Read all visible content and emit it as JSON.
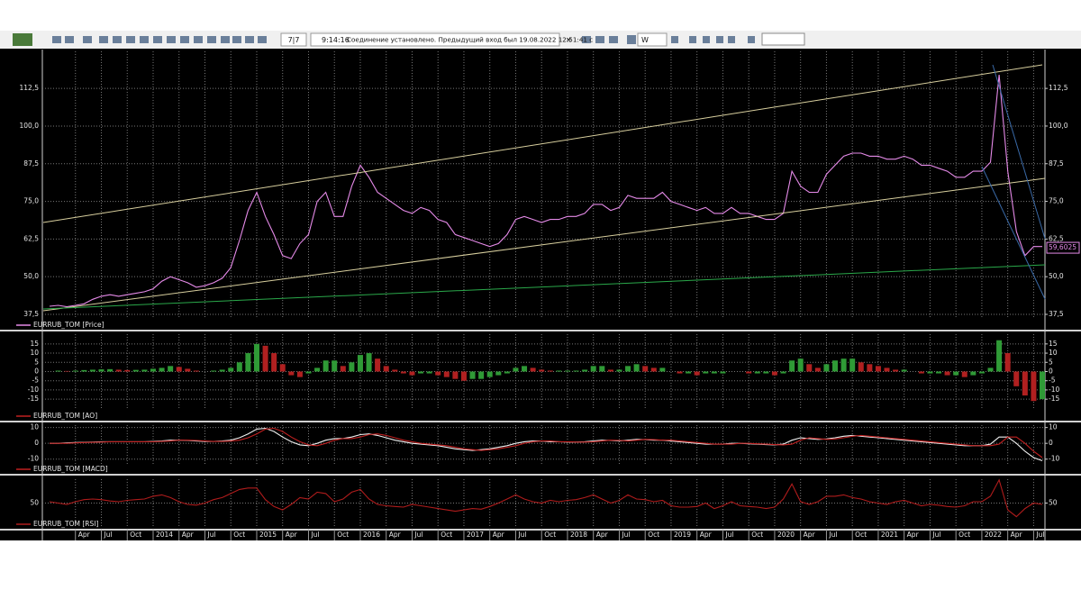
{
  "toolbar": {
    "counter": "7|7",
    "time": "9:14:16",
    "status": "Соединение установлено. Предыдущий вход был 19.08.2022 12:51:41 с",
    "period": "W"
  },
  "chart_data": [
    {
      "type": "line",
      "categories": [
        null,
        null,
        null,
        "Apr",
        null,
        null,
        "Jul",
        null,
        null,
        "Oct",
        null,
        null,
        "2014",
        null,
        null,
        "Apr",
        null,
        null,
        "Jul",
        null,
        null,
        "Oct",
        null,
        null,
        "2015",
        null,
        null,
        "Apr",
        null,
        null,
        "Jul",
        null,
        null,
        "Oct",
        null,
        null,
        "2016",
        null,
        null,
        "Apr",
        null,
        null,
        "Jul",
        null,
        null,
        "Oct",
        null,
        null,
        "2017",
        null,
        null,
        "Apr",
        null,
        null,
        "Jul",
        null,
        null,
        "Oct",
        null,
        null,
        "2018",
        null,
        null,
        "Apr",
        null,
        null,
        "Jul",
        null,
        null,
        "Oct",
        null,
        null,
        "2019",
        null,
        null,
        "Apr",
        null,
        null,
        "Jul",
        null,
        null,
        "Oct",
        null,
        null,
        "2020",
        null,
        null,
        "Apr",
        null,
        null,
        "Jul",
        null,
        null,
        "Oct",
        null,
        null,
        "2021",
        null,
        null,
        "Apr",
        null,
        null,
        "Jul",
        null,
        null,
        "Oct",
        null,
        null,
        "2022",
        null,
        null,
        "Apr",
        null,
        null,
        "Jul",
        null
      ],
      "series": [
        {
          "name": "EURRUB_TOM [Price]",
          "color": "#e58ae8",
          "values": [
            40.2,
            40.5,
            40,
            40.5,
            41,
            42.5,
            43.5,
            44,
            43.5,
            44,
            44.5,
            45,
            46,
            48.5,
            50,
            49,
            48,
            46.5,
            47,
            48,
            49.5,
            53,
            62,
            72,
            78,
            70,
            64,
            57,
            56,
            61,
            64,
            75,
            78,
            70,
            70,
            80,
            87,
            83,
            78,
            76,
            74,
            72,
            71,
            73,
            72,
            69,
            68,
            64,
            63,
            62,
            61,
            60,
            61,
            64,
            69,
            70,
            69,
            68,
            69,
            69,
            70,
            70,
            71,
            74,
            74,
            72,
            73,
            77,
            76,
            76,
            76,
            78,
            75,
            74,
            73,
            72,
            73,
            71,
            71,
            73,
            71,
            71,
            70,
            69,
            69,
            71,
            85,
            80,
            78,
            78,
            84,
            87,
            90,
            91,
            91,
            90,
            90,
            89,
            89,
            90,
            89,
            87,
            87,
            86,
            85,
            83,
            83,
            85,
            85,
            88,
            117,
            85,
            65,
            57,
            60,
            60
          ]
        }
      ],
      "last_value": {
        "value": 59.6025,
        "label": "59,6025"
      },
      "ylim": [
        36.6,
        124.8
      ],
      "yticks": [
        {
          "value": 37.5,
          "label": "37,5"
        },
        {
          "value": 50,
          "label": "50,0"
        },
        {
          "value": 62.5,
          "label": "62,5"
        },
        {
          "value": 75,
          "label": "75,0"
        },
        {
          "value": 87.5,
          "label": "87,5"
        },
        {
          "value": 100,
          "label": "100,0"
        },
        {
          "value": 112.5,
          "label": "112,5"
        }
      ],
      "grid": true
    },
    {
      "type": "bar",
      "series": [
        {
          "name": "EURRUB_TOM [AO]",
          "color": "#c02020",
          "up_color": "#2f9a36",
          "down_color": "#b02020",
          "values": [
            0,
            0.5,
            0.3,
            0.5,
            0.8,
            1,
            1.2,
            1.3,
            1,
            0.8,
            0.9,
            1,
            1.5,
            2,
            3,
            2.5,
            1.5,
            0.5,
            0,
            0.5,
            1,
            2,
            5,
            10,
            15,
            14,
            10,
            4,
            -2,
            -3,
            -1,
            2,
            6,
            6,
            3,
            5,
            9,
            10,
            7,
            3,
            1,
            -1,
            -2,
            -1,
            -1,
            -2,
            -3,
            -4,
            -5,
            -4,
            -4,
            -3,
            -2,
            -1,
            2,
            3,
            2,
            1,
            0.5,
            0.5,
            0.5,
            0.5,
            1,
            3,
            3,
            1,
            1,
            3,
            4,
            3,
            2,
            2,
            0,
            -1,
            -1,
            -2,
            -1,
            -1,
            -1,
            0,
            0,
            -1,
            -1,
            -1,
            -2,
            -1,
            6,
            7,
            4,
            2,
            4,
            6,
            7,
            7,
            5,
            4,
            3,
            2,
            1,
            1,
            0,
            -1,
            -1,
            -1,
            -2,
            -2,
            -3,
            -2,
            -1,
            2,
            17,
            10,
            -8,
            -13,
            -16,
            -15
          ]
        }
      ],
      "ylim": [
        -20.8,
        20.3
      ],
      "yticks": [
        15,
        10,
        5,
        0,
        -5,
        -10,
        -15
      ],
      "grid": true
    },
    {
      "type": "line",
      "series": [
        {
          "color": "#f0f0f0",
          "values": [
            0,
            0,
            0.3,
            0.5,
            0.6,
            0.8,
            1,
            1,
            1,
            1,
            1,
            1,
            1.2,
            1.5,
            2,
            2,
            1.8,
            1.5,
            1.2,
            1.2,
            1.5,
            2,
            3.5,
            6,
            9,
            9.5,
            7.5,
            4,
            1,
            -1,
            -1.5,
            0,
            2,
            3,
            3,
            4,
            5.5,
            6,
            5,
            3.5,
            2,
            1,
            0,
            -0.5,
            -1,
            -1.5,
            -2.5,
            -3.5,
            -4,
            -4.5,
            -4,
            -3.5,
            -2.5,
            -1.5,
            0,
            1,
            1.5,
            1.5,
            1,
            1,
            0.8,
            0.8,
            1,
            1.5,
            2,
            1.8,
            1.5,
            2,
            2.5,
            2.3,
            2,
            2,
            1.5,
            1,
            0.5,
            0,
            -0.5,
            -0.5,
            -0.5,
            0,
            0,
            -0.3,
            -0.5,
            -0.8,
            -1,
            -0.5,
            2,
            3.5,
            3,
            2.5,
            2.8,
            3.5,
            4.5,
            5,
            4.5,
            4,
            3.5,
            3,
            2.5,
            2,
            1.5,
            1,
            0.5,
            0,
            -0.5,
            -1,
            -1.5,
            -1.5,
            -1.5,
            -0.5,
            4,
            4,
            0,
            -5,
            -9,
            -11
          ]
        },
        {
          "name": "EURRUB_TOM [MACD]",
          "color": "#c02020",
          "values": [
            0,
            0,
            0,
            0.3,
            0.5,
            0.6,
            0.8,
            1,
            1,
            1,
            1,
            1,
            1,
            1.2,
            1.5,
            2,
            2,
            1.8,
            1.5,
            1.2,
            1.2,
            1.5,
            2,
            3.5,
            6,
            9,
            9.5,
            7.5,
            4,
            1,
            -1,
            -1.5,
            0,
            2,
            3,
            3,
            4,
            5.5,
            6,
            5,
            3.5,
            2,
            1,
            0,
            -0.5,
            -1,
            -1.5,
            -2.5,
            -3.5,
            -4,
            -4.5,
            -4,
            -3.5,
            -2.5,
            -1.5,
            0,
            1,
            1.5,
            1.5,
            1,
            1,
            0.8,
            0.8,
            1,
            1.5,
            2,
            1.8,
            1.5,
            2,
            2.5,
            2.3,
            2,
            2,
            1.5,
            1,
            0.5,
            0,
            -0.5,
            -0.5,
            -0.5,
            0,
            0,
            -0.3,
            -0.5,
            -0.8,
            -1,
            -0.5,
            2,
            3.5,
            3,
            2.5,
            2.8,
            3.5,
            4.5,
            5,
            4.5,
            4,
            3.5,
            3,
            2.5,
            2,
            1.5,
            1,
            0.5,
            0,
            -0.5,
            -1,
            -1.5,
            -1.5,
            -1.5,
            -0.5,
            4,
            4,
            0,
            -5,
            -9
          ]
        }
      ],
      "ylim": [
        -13,
        11.5
      ],
      "yticks": [
        10,
        0,
        -10
      ],
      "grid": true
    },
    {
      "type": "line",
      "series": [
        {
          "name": "EURRUB_TOM [RSI]",
          "color": "#b01c1c",
          "values": [
            52,
            50,
            48,
            52,
            55,
            56,
            55,
            53,
            52,
            54,
            55,
            56,
            60,
            62,
            58,
            52,
            48,
            47,
            50,
            55,
            58,
            64,
            70,
            72,
            72,
            55,
            45,
            40,
            48,
            58,
            56,
            66,
            64,
            52,
            56,
            66,
            70,
            56,
            48,
            46,
            45,
            44,
            48,
            46,
            44,
            42,
            40,
            38,
            40,
            42,
            41,
            45,
            50,
            56,
            62,
            56,
            52,
            50,
            54,
            52,
            54,
            55,
            58,
            62,
            56,
            50,
            54,
            62,
            56,
            55,
            52,
            54,
            46,
            44,
            44,
            45,
            50,
            42,
            46,
            52,
            46,
            45,
            44,
            42,
            44,
            56,
            78,
            52,
            48,
            52,
            60,
            60,
            62,
            58,
            56,
            52,
            50,
            48,
            52,
            54,
            50,
            46,
            48,
            47,
            45,
            44,
            46,
            52,
            52,
            60,
            84,
            40,
            30,
            42,
            50,
            48
          ]
        }
      ],
      "ylim": [
        15,
        85
      ],
      "yticks": [
        50
      ],
      "grid": true
    }
  ]
}
